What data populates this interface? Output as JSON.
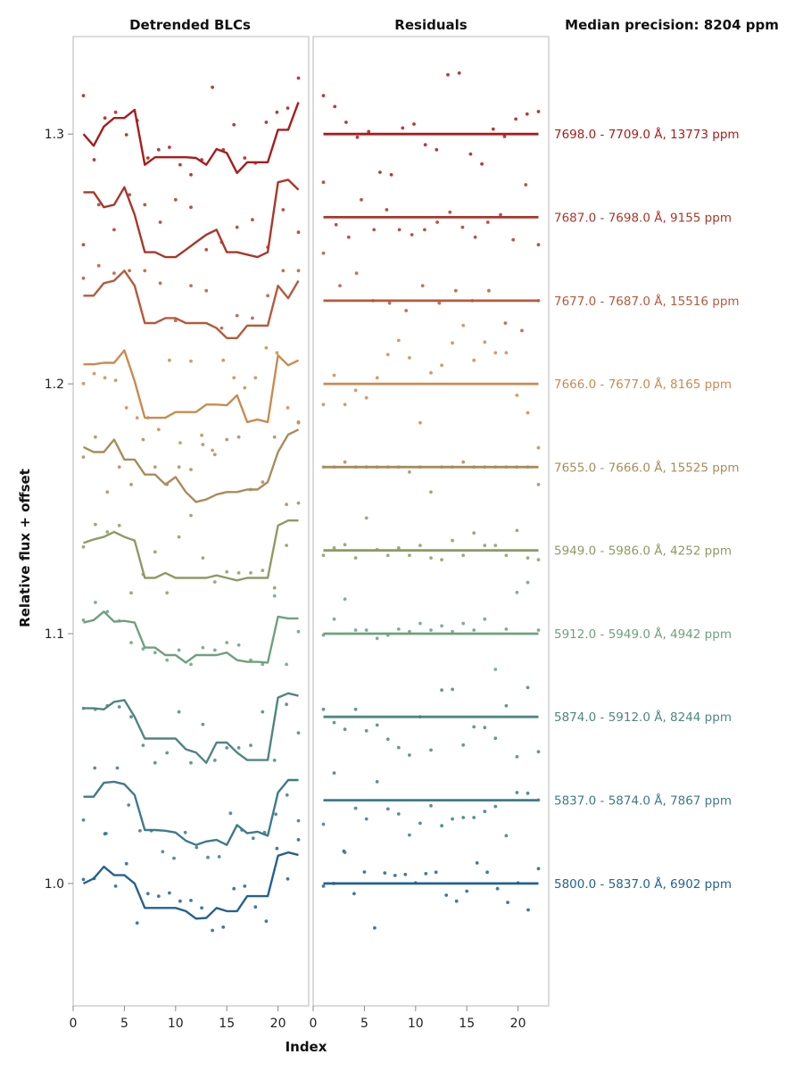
{
  "chart_data": {
    "type": "line",
    "panels": [
      {
        "title": "Detrended BLCs",
        "xlabel": ""
      },
      {
        "title": "Residuals",
        "xlabel": ""
      }
    ],
    "side_title": "Median precision: 8204 ppm",
    "xlabel": "Index",
    "ylabel": "Relative flux + offset",
    "xlim": [
      0,
      23
    ],
    "ylim": [
      0.951,
      1.339
    ],
    "x_ticks": [
      0,
      5,
      10,
      15,
      20
    ],
    "y_ticks": [
      1.0,
      1.1,
      1.2,
      1.3
    ],
    "x_tick_labels": [
      "0",
      "5",
      "10",
      "15",
      "20"
    ],
    "y_tick_labels": [
      "1.0",
      "1.1",
      "1.2",
      "1.3"
    ],
    "grid": false,
    "legend": "right",
    "series": [
      {
        "name": "5800.0 - 5837.0 Å, 6902 ppm",
        "label": "5800.0 - 5837.0 Å, 6902 ppm",
        "color": "#236291",
        "offset": 1.0,
        "model": [
          1.0,
          1.002,
          1.0067,
          1.0033,
          1.0033,
          1.0,
          0.9902,
          0.9902,
          0.9902,
          0.9902,
          0.9889,
          0.9859,
          0.9862,
          0.9902,
          0.9889,
          0.9889,
          0.9949,
          0.9949,
          0.9949,
          1.0111,
          1.0124,
          1.0114
        ],
        "points": [
          1.0016,
          1.002,
          1.0199,
          0.9989,
          1.0079,
          0.9842,
          0.9959,
          0.9949,
          0.9962,
          0.9929,
          0.9932,
          0.9902,
          0.9812,
          0.9825,
          0.9979,
          0.9989,
          0.9906,
          0.9849,
          1.014,
          1.0018,
          1.0175
        ],
        "residuals": [
          0.9989,
          1.0,
          1.0129,
          0.9959,
          1.0046,
          0.9822,
          1.0042,
          1.0032,
          1.0036,
          1.0002,
          1.0039,
          1.0045,
          0.9953,
          0.9929,
          0.9969,
          1.0082,
          1.0045,
          0.9979,
          0.9924,
          1.0002,
          0.9894,
          1.0059
        ]
      },
      {
        "name": "5837.0 - 5874.0 Å, 7867 ppm",
        "label": "5837.0 - 5874.0 Å, 7867 ppm",
        "color": "#3e7a8c",
        "offset": 1.0333,
        "model": [
          1.0347,
          1.0347,
          1.0403,
          1.0407,
          1.0397,
          1.0354,
          1.0214,
          1.0214,
          1.0211,
          1.0204,
          1.0171,
          1.0154,
          1.0168,
          1.0174,
          1.0154,
          1.0234,
          1.0201,
          1.0207,
          1.0191,
          1.0364,
          1.0414,
          1.0414
        ],
        "points": [
          1.0254,
          1.0462,
          1.02,
          1.0462,
          1.0314,
          1.0211,
          1.0211,
          1.0127,
          1.0101,
          1.0204,
          1.0144,
          1.0104,
          1.0107,
          1.0281,
          1.0214,
          1.0181,
          1.0204,
          1.0277,
          1.0354,
          1.0251
        ],
        "residuals": [
          1.0237,
          1.0442,
          1.0124,
          1.0301,
          1.0258,
          1.0407,
          1.0298,
          1.0278,
          1.0194,
          1.0241,
          1.0311,
          1.0231,
          1.0258,
          1.0264,
          1.0264,
          1.0288,
          1.0308,
          1.0191,
          1.0364,
          1.0361,
          1.0334
        ]
      },
      {
        "name": "5874.0 - 5912.0 Å, 8244 ppm",
        "label": "5874.0 - 5912.0 Å, 8244 ppm",
        "color": "#4f8680",
        "offset": 1.0667,
        "model": [
          1.0701,
          1.0701,
          1.0697,
          1.0727,
          1.0734,
          1.0667,
          1.058,
          1.058,
          1.058,
          1.058,
          1.0537,
          1.0524,
          1.0483,
          1.0564,
          1.0564,
          1.0524,
          1.0494,
          1.0494,
          1.0494,
          1.0744,
          1.0761,
          1.0751
        ],
        "points": [
          1.0701,
          1.0697,
          1.0711,
          1.0707,
          1.0667,
          1.0553,
          1.0483,
          1.0523,
          1.0687,
          1.0483,
          1.0637,
          1.0493,
          1.0543,
          1.0543,
          1.0553,
          1.0687,
          1.0493,
          1.0717,
          1.0603
        ],
        "residuals": [
          1.0697,
          1.0644,
          1.0617,
          1.0697,
          1.0611,
          1.0634,
          1.0577,
          1.0544,
          1.0514,
          1.0667,
          1.0534,
          1.0774,
          1.0777,
          1.0554,
          1.0627,
          1.0624,
          1.0581,
          1.0711,
          1.0507,
          1.0784,
          1.0527
        ]
      },
      {
        "name": "5912.0 - 5949.0 Å, 4942 ppm",
        "label": "5912.0 - 5949.0 Å, 4942 ppm",
        "color": "#6fa07f",
        "offset": 1.1,
        "model": [
          1.1044,
          1.1054,
          1.1088,
          1.1048,
          1.1051,
          1.1044,
          1.0944,
          1.0944,
          1.0914,
          1.0914,
          1.0884,
          1.0914,
          1.0914,
          1.0914,
          1.0924,
          1.0894,
          1.0887,
          1.0887,
          1.0884,
          1.1068,
          1.1061,
          1.1061
        ],
        "points": [
          1.1054,
          1.1125,
          1.1088,
          1.1051,
          1.0964,
          1.0939,
          1.0924,
          1.0894,
          1.0934,
          1.0877,
          1.0944,
          1.0934,
          1.0964,
          1.0954,
          1.0894,
          1.0877,
          1.1151,
          1.0877,
          1.1008
        ],
        "residuals": [
          1.0994,
          1.1058,
          1.1138,
          1.1014,
          1.1014,
          1.0981,
          1.0994,
          1.1018,
          1.1008,
          1.1041,
          1.1014,
          1.1031,
          1.1008,
          1.1041,
          1.1014,
          1.1058,
          1.0857,
          1.1018,
          1.1165,
          1.1205,
          1.1014
        ]
      },
      {
        "name": "5949.0 - 5986.0 Å, 4252 ppm",
        "label": "5949.0 - 5986.0 Å, 4252 ppm",
        "color": "#8d9b64",
        "offset": 1.1333,
        "model": [
          1.1363,
          1.1377,
          1.1387,
          1.1407,
          1.1387,
          1.1373,
          1.1223,
          1.1223,
          1.1243,
          1.1223,
          1.1223,
          1.1223,
          1.1223,
          1.1233,
          1.1223,
          1.1213,
          1.1223,
          1.1223,
          1.1223,
          1.1433,
          1.1453,
          1.1453
        ],
        "points": [
          1.1347,
          1.1437,
          1.1407,
          1.1433,
          1.1163,
          1.1237,
          1.1327,
          1.1163,
          1.1387,
          1.1473,
          1.1303,
          1.1207,
          1.1247,
          1.1243,
          1.1243,
          1.1253,
          1.1183,
          1.1353,
          1.1523
        ],
        "residuals": [
          1.1313,
          1.1343,
          1.1356,
          1.1303,
          1.1463,
          1.1336,
          1.1313,
          1.1343,
          1.1313,
          1.1353,
          1.1303,
          1.1296,
          1.1373,
          1.1313,
          1.1403,
          1.1353,
          1.1353,
          1.1313,
          1.1413,
          1.1303,
          1.1296
        ]
      },
      {
        "name": "7655.0 - 7666.0 Å, 15525 ppm",
        "label": "7655.0 - 7666.0 Å, 15525 ppm",
        "color": "#a98c5b",
        "offset": 1.1667,
        "model": [
          1.1747,
          1.1727,
          1.1727,
          1.1777,
          1.1697,
          1.1697,
          1.1637,
          1.1637,
          1.1597,
          1.1627,
          1.1567,
          1.1527,
          1.1537,
          1.1557,
          1.1567,
          1.1567,
          1.1577,
          1.1577,
          1.1607,
          1.1727,
          1.1797,
          1.1817
        ],
        "points": [
          1.1707,
          1.1787,
          1.1567,
          1.1667,
          1.1597,
          1.1777,
          1.1667,
          1.1597,
          1.1667,
          1.1657,
          1.1757,
          1.1717,
          1.1777,
          1.1787,
          1.1577,
          1.1607,
          1.1787,
          1.1517,
          1.1847
        ],
        "residuals": [
          1.1667,
          1.1667,
          1.1687,
          1.1667,
          1.1667,
          1.1667,
          1.1667,
          1.1667,
          1.1647,
          1.1667,
          1.1567,
          1.1667,
          1.1667,
          1.1687,
          1.1667,
          1.1667,
          1.1667,
          1.1667,
          1.1667,
          1.1667,
          1.1597
        ]
      },
      {
        "name": "7666.0 - 7677.0 Å, 8165 ppm",
        "label": "7666.0 - 7677.0 Å, 8165 ppm",
        "color": "#c98b50",
        "offset": 1.2,
        "model": [
          1.2078,
          1.2078,
          1.2084,
          1.2084,
          1.2134,
          1.2011,
          1.1864,
          1.1864,
          1.1864,
          1.1887,
          1.1887,
          1.1887,
          1.1917,
          1.1917,
          1.1914,
          1.1954,
          1.1847,
          1.1857,
          1.1847,
          1.2114,
          1.2074,
          1.2094
        ],
        "points": [
          1.2001,
          1.2041,
          1.2024,
          1.2014,
          1.1904,
          1.1864,
          1.1864,
          1.1817,
          1.2094,
          1.1764,
          1.2091,
          1.1794,
          1.1734,
          1.2094,
          1.2024,
          1.1984,
          1.2024,
          1.2144,
          1.2124,
          1.1904,
          1.1844
        ],
        "residuals": [
          1.1917,
          1.2034,
          1.1917,
          1.1974,
          1.1944,
          1.2024,
          1.2117,
          1.2174,
          1.2104,
          1.1844,
          1.2044,
          1.2074,
          1.2164,
          1.2234,
          1.2094,
          1.2167,
          1.2124,
          1.2124,
          1.1954,
          1.1884,
          1.1744
        ]
      },
      {
        "name": "7677.0 - 7687.0 Å, 15516 ppm",
        "label": "7677.0 - 7687.0 Å, 15516 ppm",
        "color": "#b55a3c",
        "offset": 1.2333,
        "model": [
          1.2353,
          1.2353,
          1.2403,
          1.2413,
          1.2453,
          1.2393,
          1.2243,
          1.2243,
          1.2263,
          1.2263,
          1.2243,
          1.2243,
          1.2243,
          1.2223,
          1.2183,
          1.2183,
          1.2233,
          1.2233,
          1.2233,
          1.2393,
          1.2343,
          1.2413
        ],
        "points": [
          1.2423,
          1.2473,
          1.2443,
          1.2453,
          1.2453,
          1.2403,
          1.2253,
          1.2393,
          1.2373,
          1.2223,
          1.2273,
          1.2263,
          1.2353,
          1.2453,
          1.2453
        ],
        "residuals": [
          1.2523,
          1.2393,
          1.2443,
          1.2333,
          1.2323,
          1.2293,
          1.2393,
          1.2323,
          1.2373,
          1.2333,
          1.2373,
          1.2243,
          1.2213,
          1.2333
        ]
      },
      {
        "name": "7687.0 - 7698.0 Å, 9155 ppm",
        "label": "7687.0 - 7698.0 Å, 9155 ppm",
        "color": "#a8382a",
        "offset": 1.2667,
        "model": [
          1.2767,
          1.2767,
          1.2707,
          1.2717,
          1.2787,
          1.2677,
          1.2527,
          1.2527,
          1.2507,
          1.2507,
          1.2537,
          1.2567,
          1.2597,
          1.2617,
          1.2527,
          1.2527,
          1.2517,
          1.2507,
          1.2527,
          1.2807,
          1.2817,
          1.2777
        ],
        "points": [
          1.2557,
          1.2717,
          1.2617,
          1.2757,
          1.2717,
          1.2647,
          1.2737,
          1.2707,
          1.2537,
          1.2567,
          1.2627,
          1.2657,
          1.2547,
          1.2697,
          1.2607
        ],
        "residuals": [
          1.2807,
          1.2637,
          1.2587,
          1.2737,
          1.2617,
          1.2697,
          1.2617,
          1.2597,
          1.2617,
          1.2647,
          1.2687,
          1.2627,
          1.2587,
          1.2647,
          1.2677,
          1.2577,
          1.2797,
          1.2557
        ]
      },
      {
        "name": "7698.0 - 7709.0 Å, 13773 ppm",
        "label": "7698.0 - 7709.0 Å, 13773 ppm",
        "color": "#a81c1c",
        "offset": 1.3,
        "model": [
          1.3,
          1.2953,
          1.303,
          1.3064,
          1.3064,
          1.3097,
          1.2877,
          1.2907,
          1.2907,
          1.2907,
          1.2907,
          1.2904,
          1.2877,
          1.294,
          1.2924,
          1.2844,
          1.2887,
          1.2887,
          1.2887,
          1.3017,
          1.3017,
          1.3127
        ],
        "points": [
          1.3154,
          1.2897,
          1.3064,
          1.3087,
          1.2997,
          1.3054,
          1.2904,
          1.2937,
          1.2947,
          1.2877,
          1.2837,
          1.2897,
          1.3187,
          1.2937,
          1.3037,
          1.2904,
          1.2884,
          1.3047,
          1.3087,
          1.3104,
          1.3224
        ],
        "residuals": [
          1.3154,
          1.311,
          1.3047,
          1.2987,
          1.301,
          1.2847,
          1.2837,
          1.3024,
          1.304,
          1.2957,
          1.2937,
          1.3237,
          1.3244,
          1.292,
          1.288,
          1.302,
          1.299,
          1.306,
          1.308,
          1.309
        ]
      }
    ]
  }
}
